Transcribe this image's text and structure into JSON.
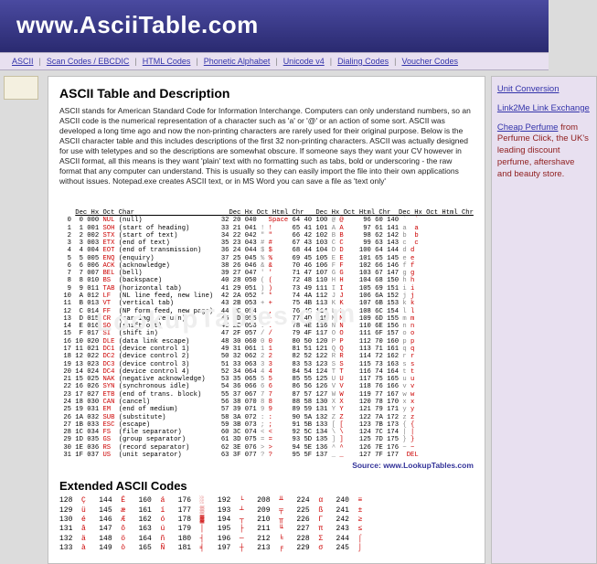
{
  "header": {
    "title": "www.AsciiTable.com"
  },
  "nav": {
    "items": [
      "ASCII",
      "Scan Codes / EBCDIC",
      "HTML Codes",
      "Phonetic Alphabet",
      "Unicode v4",
      "Dialing Codes",
      "Voucher Codes"
    ]
  },
  "main": {
    "h2": "ASCII Table and Description",
    "para": "ASCII stands for American Standard Code for Information Interchange. Computers can only understand numbers, so an ASCII code is the numerical representation of a character such as 'a' or '@' or an action of some sort. ASCII was developed a long time ago and now the non-printing characters are rarely used for their original purpose. Below is the ASCII character table and this includes descriptions of the first 32 non-printing characters. ASCII was actually designed for use with teletypes and so the descriptions are somewhat obscure. If someone says they want your CV however in ASCII format, all this means is they want 'plain' text with no formatting such as tabs, bold or underscoring - the raw format that any computer can understand. This is usually so they can easily import the file into their own applications without issues. Notepad.exe creates ASCII text, or in MS Word you can save a file as 'text only'",
    "source_label": "Source:   www.LookupTables.com",
    "ext_header": "Extended ASCII Codes"
  },
  "sidebar": {
    "link1": "Unit Conversion",
    "link2": "Link2Me Link Exchange",
    "promo_link": "Cheap Perfume",
    "promo_rest": " from Perfume Click, the UK's leading discount perfume, aftershave and beauty store."
  },
  "ascii": {
    "hdr": "Dec Hx Oct Char                        Dec Hx Oct Html Chr   Dec Hx Oct Html Chr  Dec Hx Oct Html Chr",
    "col1": [
      [
        "  0  0 000 ",
        "NUL",
        " (null)"
      ],
      [
        "  1  1 001 ",
        "SOH",
        " (start of heading)"
      ],
      [
        "  2  2 002 ",
        "STX",
        " (start of text)"
      ],
      [
        "  3  3 003 ",
        "ETX",
        " (end of text)"
      ],
      [
        "  4  4 004 ",
        "EOT",
        " (end of transmission)"
      ],
      [
        "  5  5 005 ",
        "ENQ",
        " (enquiry)"
      ],
      [
        "  6  6 006 ",
        "ACK",
        " (acknowledge)"
      ],
      [
        "  7  7 007 ",
        "BEL",
        " (bell)"
      ],
      [
        "  8  8 010 ",
        "BS",
        "  (backspace)"
      ],
      [
        "  9  9 011 ",
        "TAB",
        " (horizontal tab)"
      ],
      [
        " 10  A 012 ",
        "LF",
        "  (NL line feed, new line)"
      ],
      [
        " 11  B 013 ",
        "VT",
        "  (vertical tab)"
      ],
      [
        " 12  C 014 ",
        "FF",
        "  (NP form feed, new page)"
      ],
      [
        " 13  D 015 ",
        "CR",
        "  (carriage return)"
      ],
      [
        " 14  E 016 ",
        "SO",
        "  (shift out)"
      ],
      [
        " 15  F 017 ",
        "SI",
        "  (shift in)"
      ],
      [
        " 16 10 020 ",
        "DLE",
        " (data link escape)"
      ],
      [
        " 17 11 021 ",
        "DC1",
        " (device control 1)"
      ],
      [
        " 18 12 022 ",
        "DC2",
        " (device control 2)"
      ],
      [
        " 19 13 023 ",
        "DC3",
        " (device control 3)"
      ],
      [
        " 20 14 024 ",
        "DC4",
        " (device control 4)"
      ],
      [
        " 21 15 025 ",
        "NAK",
        " (negative acknowledge)"
      ],
      [
        " 22 16 026 ",
        "SYN",
        " (synchronous idle)"
      ],
      [
        " 23 17 027 ",
        "ETB",
        " (end of trans. block)"
      ],
      [
        " 24 18 030 ",
        "CAN",
        " (cancel)"
      ],
      [
        " 25 19 031 ",
        "EM",
        "  (end of medium)"
      ],
      [
        " 26 1A 032 ",
        "SUB",
        " (substitute)"
      ],
      [
        " 27 1B 033 ",
        "ESC",
        " (escape)"
      ],
      [
        " 28 1C 034 ",
        "FS",
        "  (file separator)"
      ],
      [
        " 29 1D 035 ",
        "GS",
        "  (group separator)"
      ],
      [
        " 30 1E 036 ",
        "RS",
        "  (record separator)"
      ],
      [
        " 31 1F 037 ",
        "US",
        "  (unit separator)"
      ]
    ],
    "col2": [
      [
        " 32 20 040 ",
        "&#32;",
        " ",
        "Space"
      ],
      [
        " 33 21 041 ",
        "&#33;",
        " ",
        "!"
      ],
      [
        " 34 22 042 ",
        "&#34;",
        " ",
        "\""
      ],
      [
        " 35 23 043 ",
        "&#35;",
        " ",
        "#"
      ],
      [
        " 36 24 044 ",
        "&#36;",
        " ",
        "$"
      ],
      [
        " 37 25 045 ",
        "&#37;",
        " ",
        "%"
      ],
      [
        " 38 26 046 ",
        "&#38;",
        " ",
        "&"
      ],
      [
        " 39 27 047 ",
        "&#39;",
        " ",
        "'"
      ],
      [
        " 40 28 050 ",
        "&#40;",
        " ",
        "("
      ],
      [
        " 41 29 051 ",
        "&#41;",
        " ",
        ")"
      ],
      [
        " 42 2A 052 ",
        "&#42;",
        " ",
        "*"
      ],
      [
        " 43 2B 053 ",
        "&#43;",
        " ",
        "+"
      ],
      [
        " 44 2C 054 ",
        "&#44;",
        " ",
        ","
      ],
      [
        " 45 2D 055 ",
        "&#45;",
        " ",
        "-"
      ],
      [
        " 46 2E 056 ",
        "&#46;",
        " ",
        "."
      ],
      [
        " 47 2F 057 ",
        "&#47;",
        " ",
        "/"
      ],
      [
        " 48 30 060 ",
        "&#48;",
        " ",
        "0"
      ],
      [
        " 49 31 061 ",
        "&#49;",
        " ",
        "1"
      ],
      [
        " 50 32 062 ",
        "&#50;",
        " ",
        "2"
      ],
      [
        " 51 33 063 ",
        "&#51;",
        " ",
        "3"
      ],
      [
        " 52 34 064 ",
        "&#52;",
        " ",
        "4"
      ],
      [
        " 53 35 065 ",
        "&#53;",
        " ",
        "5"
      ],
      [
        " 54 36 066 ",
        "&#54;",
        " ",
        "6"
      ],
      [
        " 55 37 067 ",
        "&#55;",
        " ",
        "7"
      ],
      [
        " 56 38 070 ",
        "&#56;",
        " ",
        "8"
      ],
      [
        " 57 39 071 ",
        "&#57;",
        " ",
        "9"
      ],
      [
        " 58 3A 072 ",
        "&#58;",
        " ",
        ":"
      ],
      [
        " 59 3B 073 ",
        "&#59;",
        " ",
        ";"
      ],
      [
        " 60 3C 074 ",
        "&#60;",
        " ",
        "<"
      ],
      [
        " 61 3D 075 ",
        "&#61;",
        " ",
        "="
      ],
      [
        " 62 3E 076 ",
        "&#62;",
        " ",
        ">"
      ],
      [
        " 63 3F 077 ",
        "&#63;",
        " ",
        "?"
      ]
    ],
    "col3": [
      [
        " 64 40 100 ",
        "&#64;",
        " ",
        "@"
      ],
      [
        " 65 41 101 ",
        "&#65;",
        " ",
        "A"
      ],
      [
        " 66 42 102 ",
        "&#66;",
        " ",
        "B"
      ],
      [
        " 67 43 103 ",
        "&#67;",
        " ",
        "C"
      ],
      [
        " 68 44 104 ",
        "&#68;",
        " ",
        "D"
      ],
      [
        " 69 45 105 ",
        "&#69;",
        " ",
        "E"
      ],
      [
        " 70 46 106 ",
        "&#70;",
        " ",
        "F"
      ],
      [
        " 71 47 107 ",
        "&#71;",
        " ",
        "G"
      ],
      [
        " 72 48 110 ",
        "&#72;",
        " ",
        "H"
      ],
      [
        " 73 49 111 ",
        "&#73;",
        " ",
        "I"
      ],
      [
        " 74 4A 112 ",
        "&#74;",
        " ",
        "J"
      ],
      [
        " 75 4B 113 ",
        "&#75;",
        " ",
        "K"
      ],
      [
        " 76 4C 114 ",
        "&#76;",
        " ",
        "L"
      ],
      [
        " 77 4D 115 ",
        "&#77;",
        " ",
        "M"
      ],
      [
        " 78 4E 116 ",
        "&#78;",
        " ",
        "N"
      ],
      [
        " 79 4F 117 ",
        "&#79;",
        " ",
        "O"
      ],
      [
        " 80 50 120 ",
        "&#80;",
        " ",
        "P"
      ],
      [
        " 81 51 121 ",
        "&#81;",
        " ",
        "Q"
      ],
      [
        " 82 52 122 ",
        "&#82;",
        " ",
        "R"
      ],
      [
        " 83 53 123 ",
        "&#83;",
        " ",
        "S"
      ],
      [
        " 84 54 124 ",
        "&#84;",
        " ",
        "T"
      ],
      [
        " 85 55 125 ",
        "&#85;",
        " ",
        "U"
      ],
      [
        " 86 56 126 ",
        "&#86;",
        " ",
        "V"
      ],
      [
        " 87 57 127 ",
        "&#87;",
        " ",
        "W"
      ],
      [
        " 88 58 130 ",
        "&#88;",
        " ",
        "X"
      ],
      [
        " 89 59 131 ",
        "&#89;",
        " ",
        "Y"
      ],
      [
        " 90 5A 132 ",
        "&#90;",
        " ",
        "Z"
      ],
      [
        " 91 5B 133 ",
        "&#91;",
        " ",
        "["
      ],
      [
        " 92 5C 134 ",
        "&#92;",
        " ",
        "\\"
      ],
      [
        " 93 5D 135 ",
        "&#93;",
        " ",
        "]"
      ],
      [
        " 94 5E 136 ",
        "&#94;",
        " ",
        "^"
      ],
      [
        " 95 5F 137 ",
        "&#95;",
        " ",
        "_"
      ]
    ],
    "col4": [
      [
        "  96 60 140 ",
        "&#96;",
        "  ",
        "`"
      ],
      [
        "  97 61 141 ",
        "&#97;",
        "  ",
        "a"
      ],
      [
        "  98 62 142 ",
        "&#98;",
        "  ",
        "b"
      ],
      [
        "  99 63 143 ",
        "&#99;",
        "  ",
        "c"
      ],
      [
        " 100 64 144 ",
        "&#100;",
        " ",
        "d"
      ],
      [
        " 101 65 145 ",
        "&#101;",
        " ",
        "e"
      ],
      [
        " 102 66 146 ",
        "&#102;",
        " ",
        "f"
      ],
      [
        " 103 67 147 ",
        "&#103;",
        " ",
        "g"
      ],
      [
        " 104 68 150 ",
        "&#104;",
        " ",
        "h"
      ],
      [
        " 105 69 151 ",
        "&#105;",
        " ",
        "i"
      ],
      [
        " 106 6A 152 ",
        "&#106;",
        " ",
        "j"
      ],
      [
        " 107 6B 153 ",
        "&#107;",
        " ",
        "k"
      ],
      [
        " 108 6C 154 ",
        "&#108;",
        " ",
        "l"
      ],
      [
        " 109 6D 155 ",
        "&#109;",
        " ",
        "m"
      ],
      [
        " 110 6E 156 ",
        "&#110;",
        " ",
        "n"
      ],
      [
        " 111 6F 157 ",
        "&#111;",
        " ",
        "o"
      ],
      [
        " 112 70 160 ",
        "&#112;",
        " ",
        "p"
      ],
      [
        " 113 71 161 ",
        "&#113;",
        " ",
        "q"
      ],
      [
        " 114 72 162 ",
        "&#114;",
        " ",
        "r"
      ],
      [
        " 115 73 163 ",
        "&#115;",
        " ",
        "s"
      ],
      [
        " 116 74 164 ",
        "&#116;",
        " ",
        "t"
      ],
      [
        " 117 75 165 ",
        "&#117;",
        " ",
        "u"
      ],
      [
        " 118 76 166 ",
        "&#118;",
        " ",
        "v"
      ],
      [
        " 119 77 167 ",
        "&#119;",
        " ",
        "w"
      ],
      [
        " 120 78 170 ",
        "&#120;",
        " ",
        "x"
      ],
      [
        " 121 79 171 ",
        "&#121;",
        " ",
        "y"
      ],
      [
        " 122 7A 172 ",
        "&#122;",
        " ",
        "z"
      ],
      [
        " 123 7B 173 ",
        "&#123;",
        " ",
        "{"
      ],
      [
        " 124 7C 174 ",
        "&#124;",
        " ",
        "|"
      ],
      [
        " 125 7D 175 ",
        "&#125;",
        " ",
        "}"
      ],
      [
        " 126 7E 176 ",
        "&#126;",
        " ",
        "~"
      ],
      [
        " 127 7F 177 ",
        "&#127;",
        " ",
        "DEL"
      ]
    ]
  },
  "ext": {
    "rows": [
      [
        "128",
        "Ç",
        "144",
        "É",
        "160",
        "á",
        "176",
        "░",
        "192",
        "└",
        "208",
        "╨",
        "224",
        "α",
        "240",
        "≡"
      ],
      [
        "129",
        "ü",
        "145",
        "æ",
        "161",
        "í",
        "177",
        "▒",
        "193",
        "┴",
        "209",
        "╤",
        "225",
        "ß",
        "241",
        "±"
      ],
      [
        "130",
        "é",
        "146",
        "Æ",
        "162",
        "ó",
        "178",
        "▓",
        "194",
        "┬",
        "210",
        "╥",
        "226",
        "Γ",
        "242",
        "≥"
      ],
      [
        "131",
        "â",
        "147",
        "ô",
        "163",
        "ú",
        "179",
        "│",
        "195",
        "├",
        "211",
        "╙",
        "227",
        "π",
        "243",
        "≤"
      ],
      [
        "132",
        "ä",
        "148",
        "ö",
        "164",
        "ñ",
        "180",
        "┤",
        "196",
        "─",
        "212",
        "╘",
        "228",
        "Σ",
        "244",
        "⌠"
      ],
      [
        "133",
        "à",
        "149",
        "ò",
        "165",
        "Ñ",
        "181",
        "╡",
        "197",
        "┼",
        "213",
        "╒",
        "229",
        "σ",
        "245",
        "⌡"
      ]
    ]
  }
}
